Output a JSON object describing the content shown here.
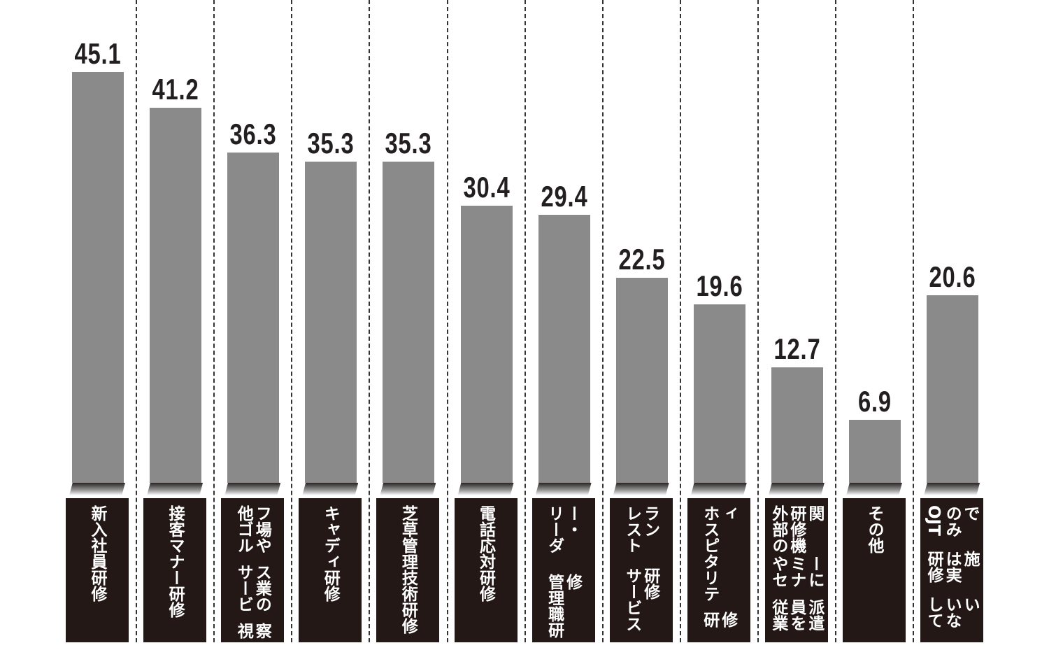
{
  "chart_data": {
    "type": "bar",
    "title": "",
    "xlabel": "",
    "ylabel": "",
    "ylim": [
      0,
      45.1
    ],
    "grid": false,
    "categories": [
      [
        "新入社員研修"
      ],
      [
        "接客マナー研修"
      ],
      [
        "他ゴルフ場や",
        "サービス業の",
        "視察"
      ],
      [
        "キャディ研修"
      ],
      [
        "芝草管理",
        "技術研修"
      ],
      [
        "電話応対研修"
      ],
      [
        "リーダー・",
        "管理職研修"
      ],
      [
        "レストラン",
        "サービス研修"
      ],
      [
        "ホスピタリティ",
        "研修"
      ],
      [
        "外部の研修機関",
        "やセミナーに",
        "従業員を派遣"
      ],
      [
        "その他"
      ],
      [
        "OJTのみで",
        "研修は実施",
        "していない"
      ]
    ],
    "values": [
      45.1,
      41.2,
      36.3,
      35.3,
      35.3,
      30.4,
      29.4,
      22.5,
      19.6,
      12.7,
      6.9,
      20.6
    ],
    "value_labels": [
      "45.1",
      "41.2",
      "36.3",
      "35.3",
      "35.3",
      "30.4",
      "29.4",
      "22.5",
      "19.6",
      "12.7",
      "6.9",
      "20.6"
    ],
    "bar_color": "#8a8a8a",
    "label_bg_color": "#231816"
  }
}
